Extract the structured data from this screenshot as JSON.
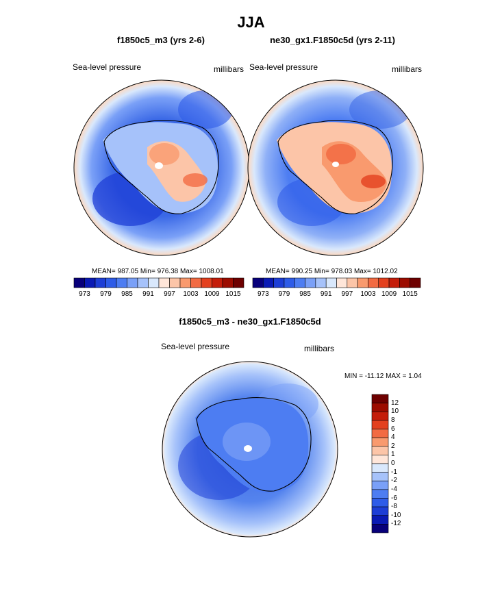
{
  "title": "JJA",
  "panels": [
    {
      "title": "f1850c5_m3 (yrs 2-6)",
      "left_label": "Sea-level pressure",
      "right_label": "millibars",
      "stats": "MEAN= 987.05  Min= 976.38  Max= 1008.01"
    },
    {
      "title": "ne30_gx1.F1850c5d (yrs 2-11)",
      "left_label": "Sea-level pressure",
      "right_label": "millibars",
      "stats": "MEAN= 990.25  Min= 978.03  Max= 1012.02"
    },
    {
      "title": "f1850c5_m3 - ne30_gx1.F1850c5d",
      "left_label": "Sea-level pressure",
      "right_label": "millibars",
      "stats": "MIN = -11.12 MAX =   1.04"
    }
  ],
  "abs_colorbar": {
    "colors": [
      "#08007a",
      "#0a1ab4",
      "#1d3ed6",
      "#2e5ce8",
      "#4d7df2",
      "#7aa0f7",
      "#a6c2fa",
      "#d9e8fc",
      "#ffe6d9",
      "#fcc5a8",
      "#f99a6e",
      "#f26b43",
      "#e3401e",
      "#c41d0a",
      "#9c0c00",
      "#6e0000"
    ],
    "tick_labels": [
      "973",
      "979",
      "985",
      "991",
      "997",
      "1003",
      "1009",
      "1015"
    ]
  },
  "diff_colorbar": {
    "colors": [
      "#08007a",
      "#0a1ab4",
      "#1d3ed6",
      "#2e5ce8",
      "#4d7df2",
      "#7aa0f7",
      "#a6c2fa",
      "#d9e8fc",
      "#ffe6d9",
      "#fcc5a8",
      "#f99a6e",
      "#f26b43",
      "#e3401e",
      "#c41d0a",
      "#9c0c00",
      "#6e0000"
    ],
    "tick_labels": [
      "12",
      "10",
      "8",
      "6",
      "4",
      "2",
      "1",
      "0",
      "-1",
      "-2",
      "-4",
      "-6",
      "-8",
      "-10",
      "-12"
    ]
  },
  "chart_data": [
    {
      "type": "heatmap",
      "title": "f1850c5_m3 (yrs 2-6)",
      "variable": "Sea-level pressure",
      "units": "millibars",
      "mean": 987.05,
      "min": 976.38,
      "max": 1008.01,
      "levels": [
        973,
        976,
        979,
        982,
        985,
        988,
        991,
        994,
        997,
        1000,
        1003,
        1006,
        1009,
        1012,
        1015
      ]
    },
    {
      "type": "heatmap",
      "title": "ne30_gx1.F1850c5d (yrs 2-11)",
      "variable": "Sea-level pressure",
      "units": "millibars",
      "mean": 990.25,
      "min": 978.03,
      "max": 1012.02,
      "levels": [
        973,
        976,
        979,
        982,
        985,
        988,
        991,
        994,
        997,
        1000,
        1003,
        1006,
        1009,
        1012,
        1015
      ]
    },
    {
      "type": "heatmap",
      "title": "f1850c5_m3 - ne30_gx1.F1850c5d",
      "variable": "Sea-level pressure",
      "units": "millibars",
      "min": -11.12,
      "max": 1.04,
      "levels": [
        -12,
        -10,
        -8,
        -6,
        -4,
        -2,
        -1,
        0,
        1,
        2,
        4,
        6,
        8,
        10,
        12
      ]
    }
  ]
}
